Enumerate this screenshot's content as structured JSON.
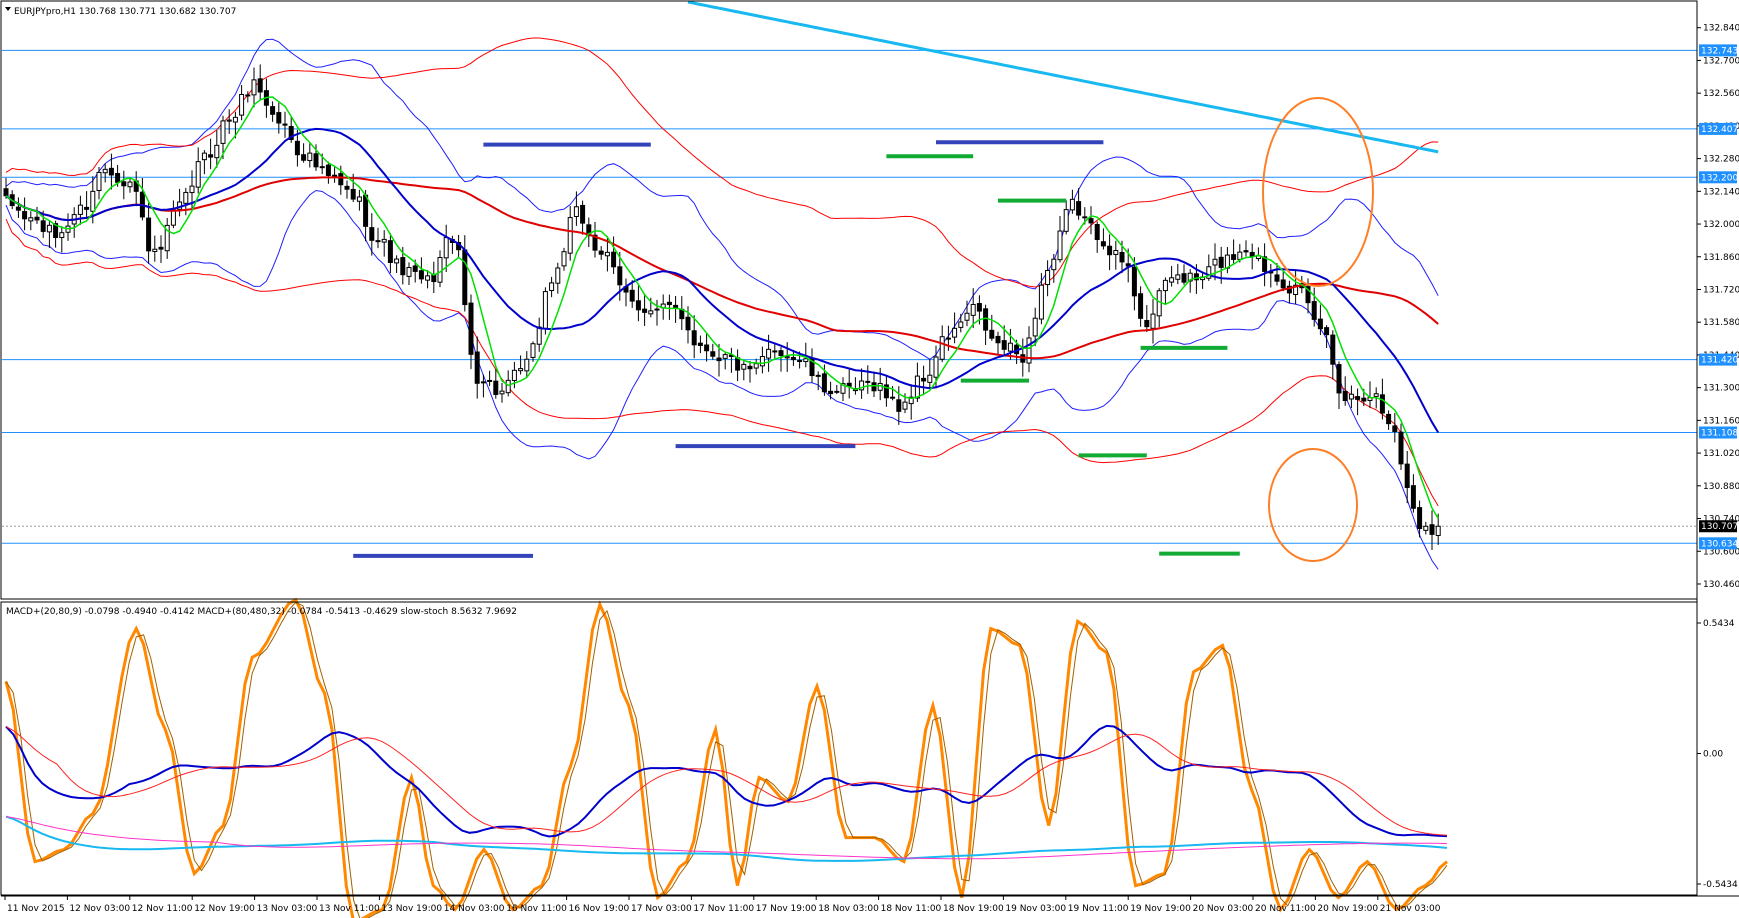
{
  "header": {
    "main_info": "EURJPYpro,H1  130.768 130.771 130.682 130.707",
    "sub_info": "MACD+(20,80,9) -0.0798 -0.4940 -0.4142   MACD+(80,480,32) -0.0784 -0.5413 -0.4629   slow-stoch 8.5632 7.9692"
  },
  "colors": {
    "bull": "#ffffff",
    "bear": "#000000",
    "ma_fast": "#00e000",
    "ma_mid": "#0000cc",
    "ma_slow": "#e00000",
    "ma_long": "#18b8f0",
    "band_red": "#ff0000",
    "band_blue": "#1f1fff",
    "level": "#1e90ff",
    "seg_blue": "#3344bb",
    "seg_green": "#11aa33",
    "ellipse": "#ff7f27",
    "stoch": "#ff8800",
    "macd_sig": "#ff2222",
    "long_sig": "#ff33cc"
  },
  "chart_data": [
    {
      "type": "candlestick",
      "symbol": "EURJPYpro",
      "timeframe": "H1",
      "ylim": [
        130.4,
        132.95
      ],
      "y_ticks": [
        132.84,
        132.7,
        132.56,
        132.42,
        132.28,
        132.14,
        132.0,
        131.86,
        131.72,
        131.58,
        131.44,
        131.3,
        131.16,
        131.02,
        130.88,
        130.74,
        130.6,
        130.46
      ],
      "y_tick_labels": [
        "132.840",
        "132.700",
        "132.560",
        "132.420",
        "132.280",
        "132.140",
        "132.000",
        "131.860",
        "131.720",
        "131.580",
        "131.440",
        "131.300",
        "131.160",
        "131.020",
        "130.880",
        "130.740",
        "130.600",
        "130.460"
      ],
      "current_price": 130.707,
      "current_price_label": "130.707",
      "horizontal_levels": [
        132.743,
        132.407,
        132.2,
        131.42,
        131.108,
        130.634
      ],
      "horizontal_level_labels": [
        "132.743",
        "132.407",
        "132.200",
        "131.420",
        "131.108",
        "130.634"
      ],
      "x_tick_labels": [
        "11 Nov 2015",
        "12 Nov 03:00",
        "12 Nov 11:00",
        "12 Nov 19:00",
        "13 Nov 03:00",
        "13 Nov 11:00",
        "13 Nov 19:00",
        "14 Nov 03:00",
        "16 Nov 11:00",
        "16 Nov 19:00",
        "17 Nov 03:00",
        "17 Nov 11:00",
        "17 Nov 19:00",
        "18 Nov 03:00",
        "18 Nov 11:00",
        "18 Nov 19:00",
        "19 Nov 03:00",
        "19 Nov 11:00",
        "19 Nov 19:00",
        "20 Nov 03:00",
        "20 Nov 11:00",
        "20 Nov 19:00",
        "21 Nov 03:00"
      ],
      "anchors": [
        [
          0,
          132.09
        ],
        [
          4,
          132.02
        ],
        [
          8,
          131.95
        ],
        [
          12,
          132.06
        ],
        [
          16,
          132.24
        ],
        [
          20,
          132.18
        ],
        [
          24,
          131.86
        ],
        [
          28,
          132.07
        ],
        [
          32,
          132.28
        ],
        [
          36,
          132.45
        ],
        [
          40,
          132.6
        ],
        [
          44,
          132.44
        ],
        [
          48,
          132.3
        ],
        [
          52,
          132.2
        ],
        [
          56,
          132.12
        ],
        [
          60,
          131.93
        ],
        [
          64,
          131.8
        ],
        [
          68,
          131.75
        ],
        [
          72,
          131.95
        ],
        [
          76,
          131.35
        ],
        [
          80,
          131.28
        ],
        [
          84,
          131.4
        ],
        [
          88,
          131.76
        ],
        [
          92,
          132.04
        ],
        [
          96,
          131.88
        ],
        [
          100,
          131.7
        ],
        [
          104,
          131.62
        ],
        [
          108,
          131.64
        ],
        [
          112,
          131.48
        ],
        [
          116,
          131.43
        ],
        [
          120,
          131.36
        ],
        [
          124,
          131.47
        ],
        [
          128,
          131.42
        ],
        [
          132,
          131.3
        ],
        [
          136,
          131.28
        ],
        [
          140,
          131.32
        ],
        [
          144,
          131.22
        ],
        [
          148,
          131.34
        ],
        [
          152,
          131.52
        ],
        [
          156,
          131.63
        ],
        [
          160,
          131.48
        ],
        [
          164,
          131.44
        ],
        [
          168,
          131.8
        ],
        [
          172,
          132.08
        ],
        [
          176,
          131.96
        ],
        [
          180,
          131.84
        ],
        [
          184,
          131.58
        ],
        [
          188,
          131.78
        ],
        [
          192,
          131.76
        ],
        [
          196,
          131.84
        ],
        [
          200,
          131.9
        ],
        [
          204,
          131.8
        ],
        [
          208,
          131.72
        ],
        [
          212,
          131.56
        ],
        [
          216,
          131.26
        ],
        [
          220,
          131.28
        ],
        [
          224,
          131.12
        ],
        [
          226,
          130.86
        ],
        [
          228,
          130.72
        ],
        [
          231,
          130.7
        ]
      ],
      "signal_segments": [
        {
          "color": "seg_blue",
          "y": 132.34,
          "i0": 77,
          "i1": 104
        },
        {
          "color": "seg_blue",
          "y": 130.58,
          "i0": 56,
          "i1": 85
        },
        {
          "color": "seg_blue",
          "y": 131.05,
          "i0": 108,
          "i1": 137
        },
        {
          "color": "seg_blue",
          "y": 132.35,
          "i0": 150,
          "i1": 177
        },
        {
          "color": "seg_green",
          "y": 132.29,
          "i0": 142,
          "i1": 156
        },
        {
          "color": "seg_green",
          "y": 132.1,
          "i0": 160,
          "i1": 171
        },
        {
          "color": "seg_green",
          "y": 131.33,
          "i0": 154,
          "i1": 165
        },
        {
          "color": "seg_green",
          "y": 131.01,
          "i0": 173,
          "i1": 184
        },
        {
          "color": "seg_green",
          "y": 131.47,
          "i0": 183,
          "i1": 197
        },
        {
          "color": "seg_green",
          "y": 130.59,
          "i0": 186,
          "i1": 199
        }
      ],
      "ellipses": [
        {
          "cx": 1318,
          "cy": 192,
          "rx": 55,
          "ry": 94
        },
        {
          "cx": 1313,
          "cy": 505,
          "rx": 44,
          "ry": 56
        }
      ]
    },
    {
      "type": "line",
      "name": "MACD+ / slow-stoch",
      "ylim": [
        -0.5434,
        0.5434
      ],
      "y_tick_labels": [
        "0.5434",
        "0.00",
        "-0.5434"
      ],
      "stoch_anchors": [
        [
          0,
          0.3
        ],
        [
          4,
          -0.45
        ],
        [
          8,
          -0.4
        ],
        [
          12,
          -0.25
        ],
        [
          18,
          0.52
        ],
        [
          22,
          0.1
        ],
        [
          26,
          -0.5
        ],
        [
          30,
          -0.3
        ],
        [
          34,
          0.4
        ],
        [
          40,
          0.64
        ],
        [
          44,
          0.25
        ],
        [
          48,
          -0.7
        ],
        [
          52,
          -0.65
        ],
        [
          56,
          -0.1
        ],
        [
          59,
          -0.55
        ],
        [
          62,
          -0.65
        ],
        [
          66,
          -0.4
        ],
        [
          70,
          -0.65
        ],
        [
          74,
          -0.55
        ],
        [
          78,
          -0.05
        ],
        [
          82,
          0.62
        ],
        [
          86,
          0.2
        ],
        [
          90,
          -0.6
        ],
        [
          94,
          -0.45
        ],
        [
          98,
          0.1
        ],
        [
          101,
          -0.55
        ],
        [
          104,
          -0.1
        ],
        [
          108,
          -0.2
        ],
        [
          112,
          0.28
        ],
        [
          116,
          -0.35
        ],
        [
          120,
          -0.35
        ],
        [
          124,
          -0.45
        ],
        [
          128,
          0.2
        ],
        [
          132,
          -0.6
        ],
        [
          136,
          0.52
        ],
        [
          140,
          0.45
        ],
        [
          144,
          -0.3
        ],
        [
          148,
          0.55
        ],
        [
          152,
          0.42
        ],
        [
          156,
          -0.55
        ],
        [
          160,
          -0.5
        ],
        [
          164,
          0.34
        ],
        [
          168,
          0.45
        ],
        [
          172,
          -0.15
        ],
        [
          176,
          -0.65
        ],
        [
          180,
          -0.4
        ],
        [
          184,
          -0.6
        ],
        [
          188,
          -0.45
        ],
        [
          192,
          -0.65
        ],
        [
          196,
          -0.55
        ],
        [
          199,
          -0.45
        ]
      ]
    }
  ]
}
